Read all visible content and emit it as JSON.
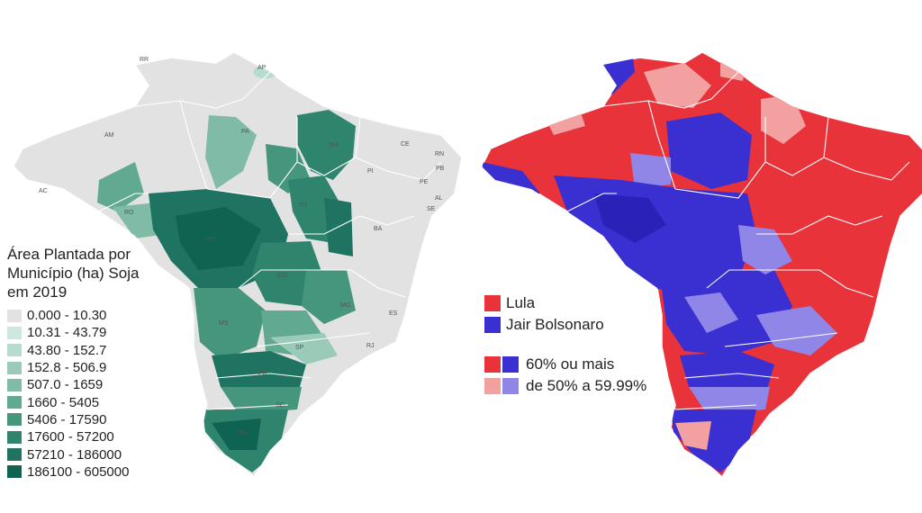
{
  "soy_map": {
    "legend_title": [
      "Área Plantada por",
      "Município (ha) Soja",
      "em 2019"
    ],
    "legend": [
      {
        "label": "0.000 - 10.30",
        "color": "#e2e2e2"
      },
      {
        "label": "10.31 - 43.79",
        "color": "#cfe8df"
      },
      {
        "label": "43.80 - 152.7",
        "color": "#b6dccd"
      },
      {
        "label": "152.8 - 506.9",
        "color": "#9acbb9"
      },
      {
        "label": "507.0 - 1659",
        "color": "#7fbba6"
      },
      {
        "label": "1660 - 5405",
        "color": "#62a992"
      },
      {
        "label": "5406 - 17590",
        "color": "#46967e"
      },
      {
        "label": "17600 - 57200",
        "color": "#2f846d"
      },
      {
        "label": "57210 - 186000",
        "color": "#1e7460"
      },
      {
        "label": "186100 - 605000",
        "color": "#0f6351"
      }
    ],
    "state_labels": [
      "RR",
      "AP",
      "AM",
      "PA",
      "MA",
      "CE",
      "RN",
      "PB",
      "PI",
      "PE",
      "AL",
      "SE",
      "AC",
      "RO",
      "TO",
      "BA",
      "MT",
      "GO",
      "MG",
      "ES",
      "MS",
      "SP",
      "RJ",
      "PR",
      "SC",
      "RS"
    ]
  },
  "election_map": {
    "legend": [
      {
        "label": "Lula",
        "color": "#e8333a"
      },
      {
        "label": "Jair Bolsonaro",
        "color": "#3a2fd0"
      }
    ],
    "shade_legend": [
      {
        "label": "60% ou mais",
        "colors": [
          "#e8333a",
          "#3a2fd0"
        ]
      },
      {
        "label": "de 50% a 59.99%",
        "colors": [
          "#f2a0a0",
          "#8f86e8"
        ]
      }
    ]
  }
}
